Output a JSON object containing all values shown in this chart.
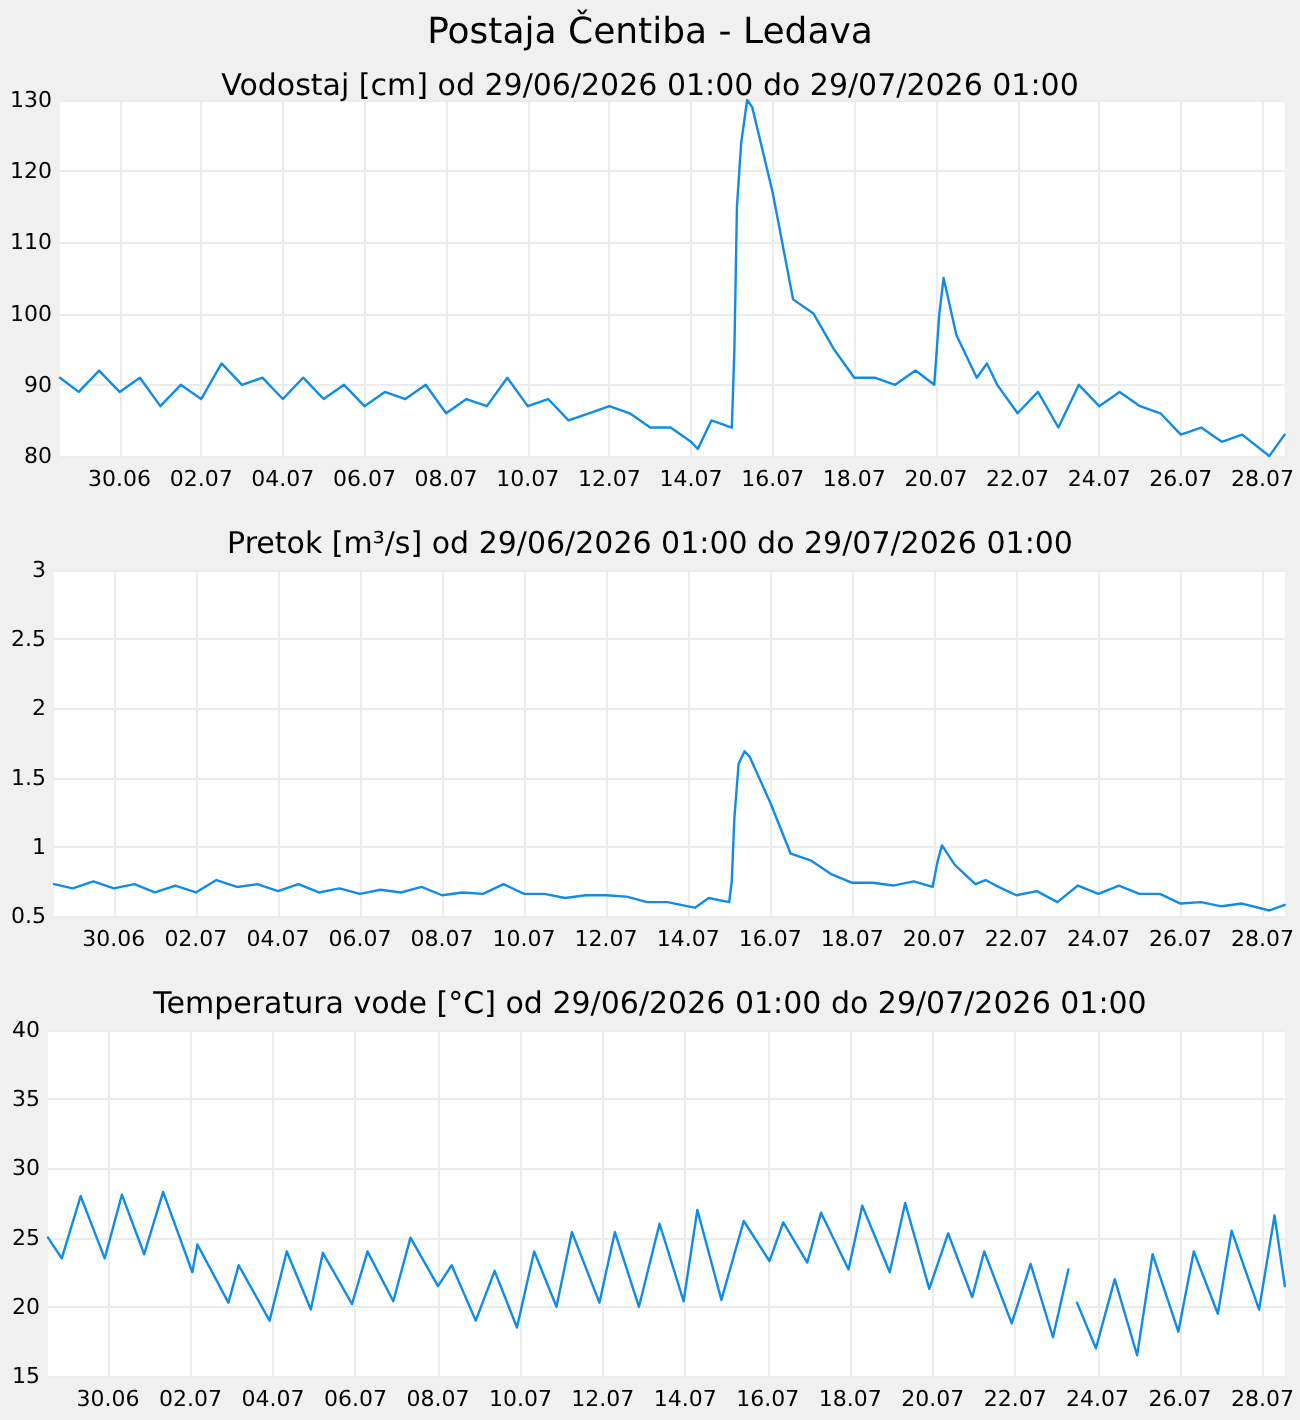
{
  "chart_data": [
    {
      "type": "line",
      "title": "Postaja Čentiba - Ledava",
      "subtitle": "Vodostaj [cm] od 29/06/2026 01:00 do 29/07/2026 01:00",
      "color": "#0f8ce9",
      "grid": true,
      "xlim": [
        "2026-06-29T01:00",
        "2026-07-29T01:00"
      ],
      "xticks": [
        {
          "value": "2026-06-30T12:00",
          "label": "30.06"
        },
        {
          "value": "2026-07-02T12:00",
          "label": "02.07"
        },
        {
          "value": "2026-07-04T12:00",
          "label": "04.07"
        },
        {
          "value": "2026-07-06T12:00",
          "label": "06.07"
        },
        {
          "value": "2026-07-08T12:00",
          "label": "08.07"
        },
        {
          "value": "2026-07-10T12:00",
          "label": "10.07"
        },
        {
          "value": "2026-07-12T12:00",
          "label": "12.07"
        },
        {
          "value": "2026-07-14T12:00",
          "label": "14.07"
        },
        {
          "value": "2026-07-16T12:00",
          "label": "16.07"
        },
        {
          "value": "2026-07-18T12:00",
          "label": "18.07"
        },
        {
          "value": "2026-07-20T12:00",
          "label": "20.07"
        },
        {
          "value": "2026-07-22T12:00",
          "label": "22.07"
        },
        {
          "value": "2026-07-24T12:00",
          "label": "24.07"
        },
        {
          "value": "2026-07-26T12:00",
          "label": "26.07"
        },
        {
          "value": "2026-07-28T12:00",
          "label": "28.07"
        }
      ],
      "ylim": [
        80,
        130
      ],
      "yticks": [
        80,
        90,
        100,
        110,
        120,
        130
      ],
      "x": [
        "2026-06-29T01:00",
        "2026-06-29T12:00",
        "2026-06-30T00:00",
        "2026-06-30T12:00",
        "2026-07-01T00:00",
        "2026-07-01T12:00",
        "2026-07-02T00:00",
        "2026-07-02T12:00",
        "2026-07-03T00:00",
        "2026-07-03T12:00",
        "2026-07-04T00:00",
        "2026-07-04T12:00",
        "2026-07-05T00:00",
        "2026-07-05T12:00",
        "2026-07-06T00:00",
        "2026-07-06T12:00",
        "2026-07-07T00:00",
        "2026-07-07T12:00",
        "2026-07-08T00:00",
        "2026-07-08T12:00",
        "2026-07-09T00:00",
        "2026-07-09T12:00",
        "2026-07-10T00:00",
        "2026-07-10T12:00",
        "2026-07-11T00:00",
        "2026-07-11T12:00",
        "2026-07-12T00:00",
        "2026-07-12T12:00",
        "2026-07-13T00:00",
        "2026-07-13T12:00",
        "2026-07-14T00:00",
        "2026-07-14T12:00",
        "2026-07-14T16:00",
        "2026-07-15T00:00",
        "2026-07-15T12:00",
        "2026-07-15T13:30",
        "2026-07-15T15:00",
        "2026-07-15T17:30",
        "2026-07-15T21:00",
        "2026-07-16T00:00",
        "2026-07-16T12:00",
        "2026-07-17T00:00",
        "2026-07-17T12:00",
        "2026-07-18T00:00",
        "2026-07-18T12:00",
        "2026-07-19T00:00",
        "2026-07-19T12:00",
        "2026-07-20T00:00",
        "2026-07-20T11:00",
        "2026-07-20T14:00",
        "2026-07-20T16:30",
        "2026-07-21T00:00",
        "2026-07-21T12:00",
        "2026-07-21T18:00",
        "2026-07-22T00:00",
        "2026-07-22T12:00",
        "2026-07-23T00:00",
        "2026-07-23T12:00",
        "2026-07-24T00:00",
        "2026-07-24T12:00",
        "2026-07-25T00:00",
        "2026-07-25T12:00",
        "2026-07-26T00:00",
        "2026-07-26T12:00",
        "2026-07-27T00:00",
        "2026-07-27T12:00",
        "2026-07-28T00:00",
        "2026-07-28T16:00",
        "2026-07-29T01:00"
      ],
      "values": [
        91,
        89,
        92,
        89,
        91,
        87,
        90,
        88,
        93,
        90,
        91,
        88,
        91,
        88,
        90,
        87,
        89,
        88,
        90,
        86,
        88,
        87,
        91,
        87,
        88,
        85,
        86,
        87,
        86,
        84,
        84,
        82,
        81,
        85,
        84,
        95,
        115,
        124,
        130,
        129,
        117,
        102,
        100,
        95,
        91,
        91,
        90,
        92,
        90,
        100,
        105,
        97,
        91,
        93,
        90,
        86,
        89,
        84,
        90,
        87,
        89,
        87,
        86,
        83,
        84,
        82,
        83,
        80,
        83
      ]
    },
    {
      "type": "line",
      "title": "Pretok [m³/s] od 29/06/2026 01:00 do 29/07/2026 01:00",
      "color": "#0f8ce9",
      "grid": true,
      "xlim": [
        "2026-06-29T01:00",
        "2026-07-29T01:00"
      ],
      "xticks": [
        {
          "value": "2026-06-30T12:00",
          "label": "30.06"
        },
        {
          "value": "2026-07-02T12:00",
          "label": "02.07"
        },
        {
          "value": "2026-07-04T12:00",
          "label": "04.07"
        },
        {
          "value": "2026-07-06T12:00",
          "label": "06.07"
        },
        {
          "value": "2026-07-08T12:00",
          "label": "08.07"
        },
        {
          "value": "2026-07-10T12:00",
          "label": "10.07"
        },
        {
          "value": "2026-07-12T12:00",
          "label": "12.07"
        },
        {
          "value": "2026-07-14T12:00",
          "label": "14.07"
        },
        {
          "value": "2026-07-16T12:00",
          "label": "16.07"
        },
        {
          "value": "2026-07-18T12:00",
          "label": "18.07"
        },
        {
          "value": "2026-07-20T12:00",
          "label": "20.07"
        },
        {
          "value": "2026-07-22T12:00",
          "label": "22.07"
        },
        {
          "value": "2026-07-24T12:00",
          "label": "24.07"
        },
        {
          "value": "2026-07-26T12:00",
          "label": "26.07"
        },
        {
          "value": "2026-07-28T12:00",
          "label": "28.07"
        }
      ],
      "ylim": [
        0.5,
        3
      ],
      "yticks": [
        0.5,
        1,
        1.5,
        2,
        2.5,
        3
      ],
      "x": [
        "2026-06-29T01:00",
        "2026-06-29T12:00",
        "2026-06-30T00:00",
        "2026-06-30T12:00",
        "2026-07-01T00:00",
        "2026-07-01T12:00",
        "2026-07-02T00:00",
        "2026-07-02T12:00",
        "2026-07-03T00:00",
        "2026-07-03T12:00",
        "2026-07-04T00:00",
        "2026-07-04T12:00",
        "2026-07-05T00:00",
        "2026-07-05T12:00",
        "2026-07-06T00:00",
        "2026-07-06T12:00",
        "2026-07-07T00:00",
        "2026-07-07T12:00",
        "2026-07-08T00:00",
        "2026-07-08T12:00",
        "2026-07-09T00:00",
        "2026-07-09T12:00",
        "2026-07-10T00:00",
        "2026-07-10T12:00",
        "2026-07-11T00:00",
        "2026-07-11T12:00",
        "2026-07-12T00:00",
        "2026-07-12T12:00",
        "2026-07-13T00:00",
        "2026-07-13T12:00",
        "2026-07-14T00:00",
        "2026-07-14T12:00",
        "2026-07-14T16:00",
        "2026-07-15T00:00",
        "2026-07-15T12:00",
        "2026-07-15T13:30",
        "2026-07-15T15:00",
        "2026-07-15T17:30",
        "2026-07-15T21:00",
        "2026-07-16T00:00",
        "2026-07-16T12:00",
        "2026-07-17T00:00",
        "2026-07-17T12:00",
        "2026-07-18T00:00",
        "2026-07-18T12:00",
        "2026-07-19T00:00",
        "2026-07-19T12:00",
        "2026-07-20T00:00",
        "2026-07-20T11:00",
        "2026-07-20T14:00",
        "2026-07-20T16:30",
        "2026-07-21T00:00",
        "2026-07-21T12:00",
        "2026-07-21T18:00",
        "2026-07-22T00:00",
        "2026-07-22T12:00",
        "2026-07-23T00:00",
        "2026-07-23T12:00",
        "2026-07-24T00:00",
        "2026-07-24T12:00",
        "2026-07-25T00:00",
        "2026-07-25T12:00",
        "2026-07-26T00:00",
        "2026-07-26T12:00",
        "2026-07-27T00:00",
        "2026-07-27T12:00",
        "2026-07-28T00:00",
        "2026-07-28T16:00",
        "2026-07-29T01:00"
      ],
      "values": [
        0.73,
        0.7,
        0.75,
        0.7,
        0.73,
        0.67,
        0.72,
        0.67,
        0.76,
        0.71,
        0.73,
        0.68,
        0.73,
        0.67,
        0.7,
        0.66,
        0.69,
        0.67,
        0.71,
        0.65,
        0.67,
        0.66,
        0.73,
        0.66,
        0.66,
        0.63,
        0.65,
        0.65,
        0.64,
        0.6,
        0.6,
        0.57,
        0.56,
        0.63,
        0.6,
        0.75,
        1.2,
        1.6,
        1.69,
        1.65,
        1.32,
        0.95,
        0.9,
        0.8,
        0.74,
        0.74,
        0.72,
        0.75,
        0.71,
        0.9,
        1.01,
        0.87,
        0.73,
        0.76,
        0.72,
        0.65,
        0.68,
        0.6,
        0.72,
        0.66,
        0.72,
        0.66,
        0.66,
        0.59,
        0.6,
        0.57,
        0.59,
        0.54,
        0.58
      ]
    },
    {
      "type": "line",
      "title": "Temperatura vode [°C] od 29/06/2026 01:00 do 29/07/2026 01:00",
      "color": "#0f8ce9",
      "grid": true,
      "xlim": [
        "2026-06-29T01:00",
        "2026-07-29T01:00"
      ],
      "xticks": [
        {
          "value": "2026-06-30T12:00",
          "label": "30.06"
        },
        {
          "value": "2026-07-02T12:00",
          "label": "02.07"
        },
        {
          "value": "2026-07-04T12:00",
          "label": "04.07"
        },
        {
          "value": "2026-07-06T12:00",
          "label": "06.07"
        },
        {
          "value": "2026-07-08T12:00",
          "label": "08.07"
        },
        {
          "value": "2026-07-10T12:00",
          "label": "10.07"
        },
        {
          "value": "2026-07-12T12:00",
          "label": "12.07"
        },
        {
          "value": "2026-07-14T12:00",
          "label": "14.07"
        },
        {
          "value": "2026-07-16T12:00",
          "label": "16.07"
        },
        {
          "value": "2026-07-18T12:00",
          "label": "18.07"
        },
        {
          "value": "2026-07-20T12:00",
          "label": "20.07"
        },
        {
          "value": "2026-07-22T12:00",
          "label": "22.07"
        },
        {
          "value": "2026-07-24T12:00",
          "label": "24.07"
        },
        {
          "value": "2026-07-26T12:00",
          "label": "26.07"
        },
        {
          "value": "2026-07-28T12:00",
          "label": "28.07"
        }
      ],
      "ylim": [
        15,
        40
      ],
      "yticks": [
        15,
        20,
        25,
        30,
        35,
        40
      ],
      "x": [
        "2026-06-29T01:00",
        "2026-06-29T09:00",
        "2026-06-29T20:00",
        "2026-06-30T10:00",
        "2026-06-30T20:00",
        "2026-07-01T09:00",
        "2026-07-01T20:00",
        "2026-07-02T13:00",
        "2026-07-02T16:00",
        "2026-07-03T10:00",
        "2026-07-03T16:00",
        "2026-07-04T10:00",
        "2026-07-04T20:00",
        "2026-07-05T10:00",
        "2026-07-05T17:00",
        "2026-07-06T10:00",
        "2026-07-06T19:00",
        "2026-07-07T10:00",
        "2026-07-07T20:00",
        "2026-07-08T12:00",
        "2026-07-08T20:00",
        "2026-07-09T10:00",
        "2026-07-09T21:00",
        "2026-07-10T10:00",
        "2026-07-10T20:00",
        "2026-07-11T09:00",
        "2026-07-11T18:00",
        "2026-07-12T10:00",
        "2026-07-12T19:00",
        "2026-07-13T09:00",
        "2026-07-13T21:00",
        "2026-07-14T11:00",
        "2026-07-14T19:00",
        "2026-07-15T09:00",
        "2026-07-15T22:00",
        "2026-07-16T13:00",
        "2026-07-16T21:00",
        "2026-07-17T11:00",
        "2026-07-17T19:00",
        "2026-07-18T11:00",
        "2026-07-18T19:00",
        "2026-07-19T11:00",
        "2026-07-19T20:00",
        "2026-07-20T10:00",
        "2026-07-20T21:00",
        "2026-07-21T11:00",
        "2026-07-21T18:00",
        "2026-07-22T10:00",
        "2026-07-22T21:00",
        "2026-07-23T10:00",
        "2026-07-23T19:00",
        "2026-07-23T21:00",
        "2026-07-24T00:00",
        "2026-07-24T11:00",
        "2026-07-24T22:00",
        "2026-07-25T11:00",
        "2026-07-25T20:00",
        "2026-07-26T11:00",
        "2026-07-26T20:00",
        "2026-07-27T10:00",
        "2026-07-27T18:00",
        "2026-07-28T10:00",
        "2026-07-28T19:00",
        "2026-07-29T01:00"
      ],
      "values": [
        25,
        23.5,
        28,
        23.5,
        28.1,
        23.8,
        28.3,
        22.5,
        24.5,
        20.3,
        23,
        19,
        24,
        19.8,
        23.9,
        20.2,
        24,
        20.4,
        25,
        21.5,
        23,
        19,
        22.6,
        18.5,
        24,
        20,
        25.4,
        20.3,
        25.4,
        20,
        26,
        20.4,
        27,
        20.5,
        26.2,
        23.3,
        26.1,
        23.2,
        26.8,
        22.7,
        27.3,
        22.5,
        27.5,
        21.3,
        25.3,
        20.7,
        24,
        18.8,
        23.1,
        17.8,
        22.7,
        null,
        20.3,
        17,
        22,
        16.5,
        23.8,
        18.2,
        24,
        19.5,
        25.5,
        19.8,
        26.6,
        21.5
      ]
    }
  ]
}
